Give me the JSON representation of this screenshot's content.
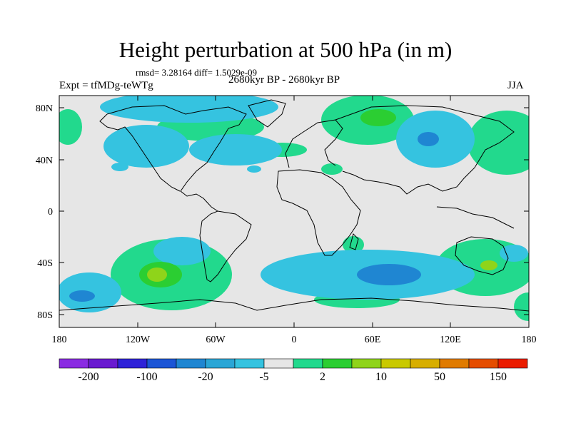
{
  "title": "Height perturbation at 500 hPa (in m)",
  "stats": "rmsd= 3.28164 diff= 1.5029e-09",
  "left_label": "Expt = tfMDg-teWTg",
  "center_label": "2680kyr BP - 2680kyr BP",
  "right_label": "JJA",
  "lat_ticks": [
    "80N",
    "40N",
    "0",
    "40S",
    "80S"
  ],
  "lon_ticks": [
    "180",
    "120W",
    "60W",
    "0",
    "60E",
    "120E",
    "180"
  ],
  "colorbar": {
    "labels": [
      "-200",
      "-100",
      "-20",
      "-5",
      "2",
      "10",
      "50",
      "150"
    ],
    "colors": [
      "#8a2be2",
      "#6a1ad0",
      "#2e22d8",
      "#1b55d6",
      "#1f86d2",
      "#2aa6d6",
      "#35c3e0",
      "#e6e6e6",
      "#22d98d",
      "#2bce32",
      "#8fd41a",
      "#c9c900",
      "#d7ae00",
      "#e07b00",
      "#e54d00",
      "#ea1c00"
    ]
  },
  "map_colors": {
    "ocean_background": "#e6e6e6",
    "coastline": "#000000",
    "positive_fill": "#22d98d",
    "negative_fill": "#35c3e0",
    "strong_negative": "#1f86d2",
    "strong_positive": "#8fd41a"
  }
}
